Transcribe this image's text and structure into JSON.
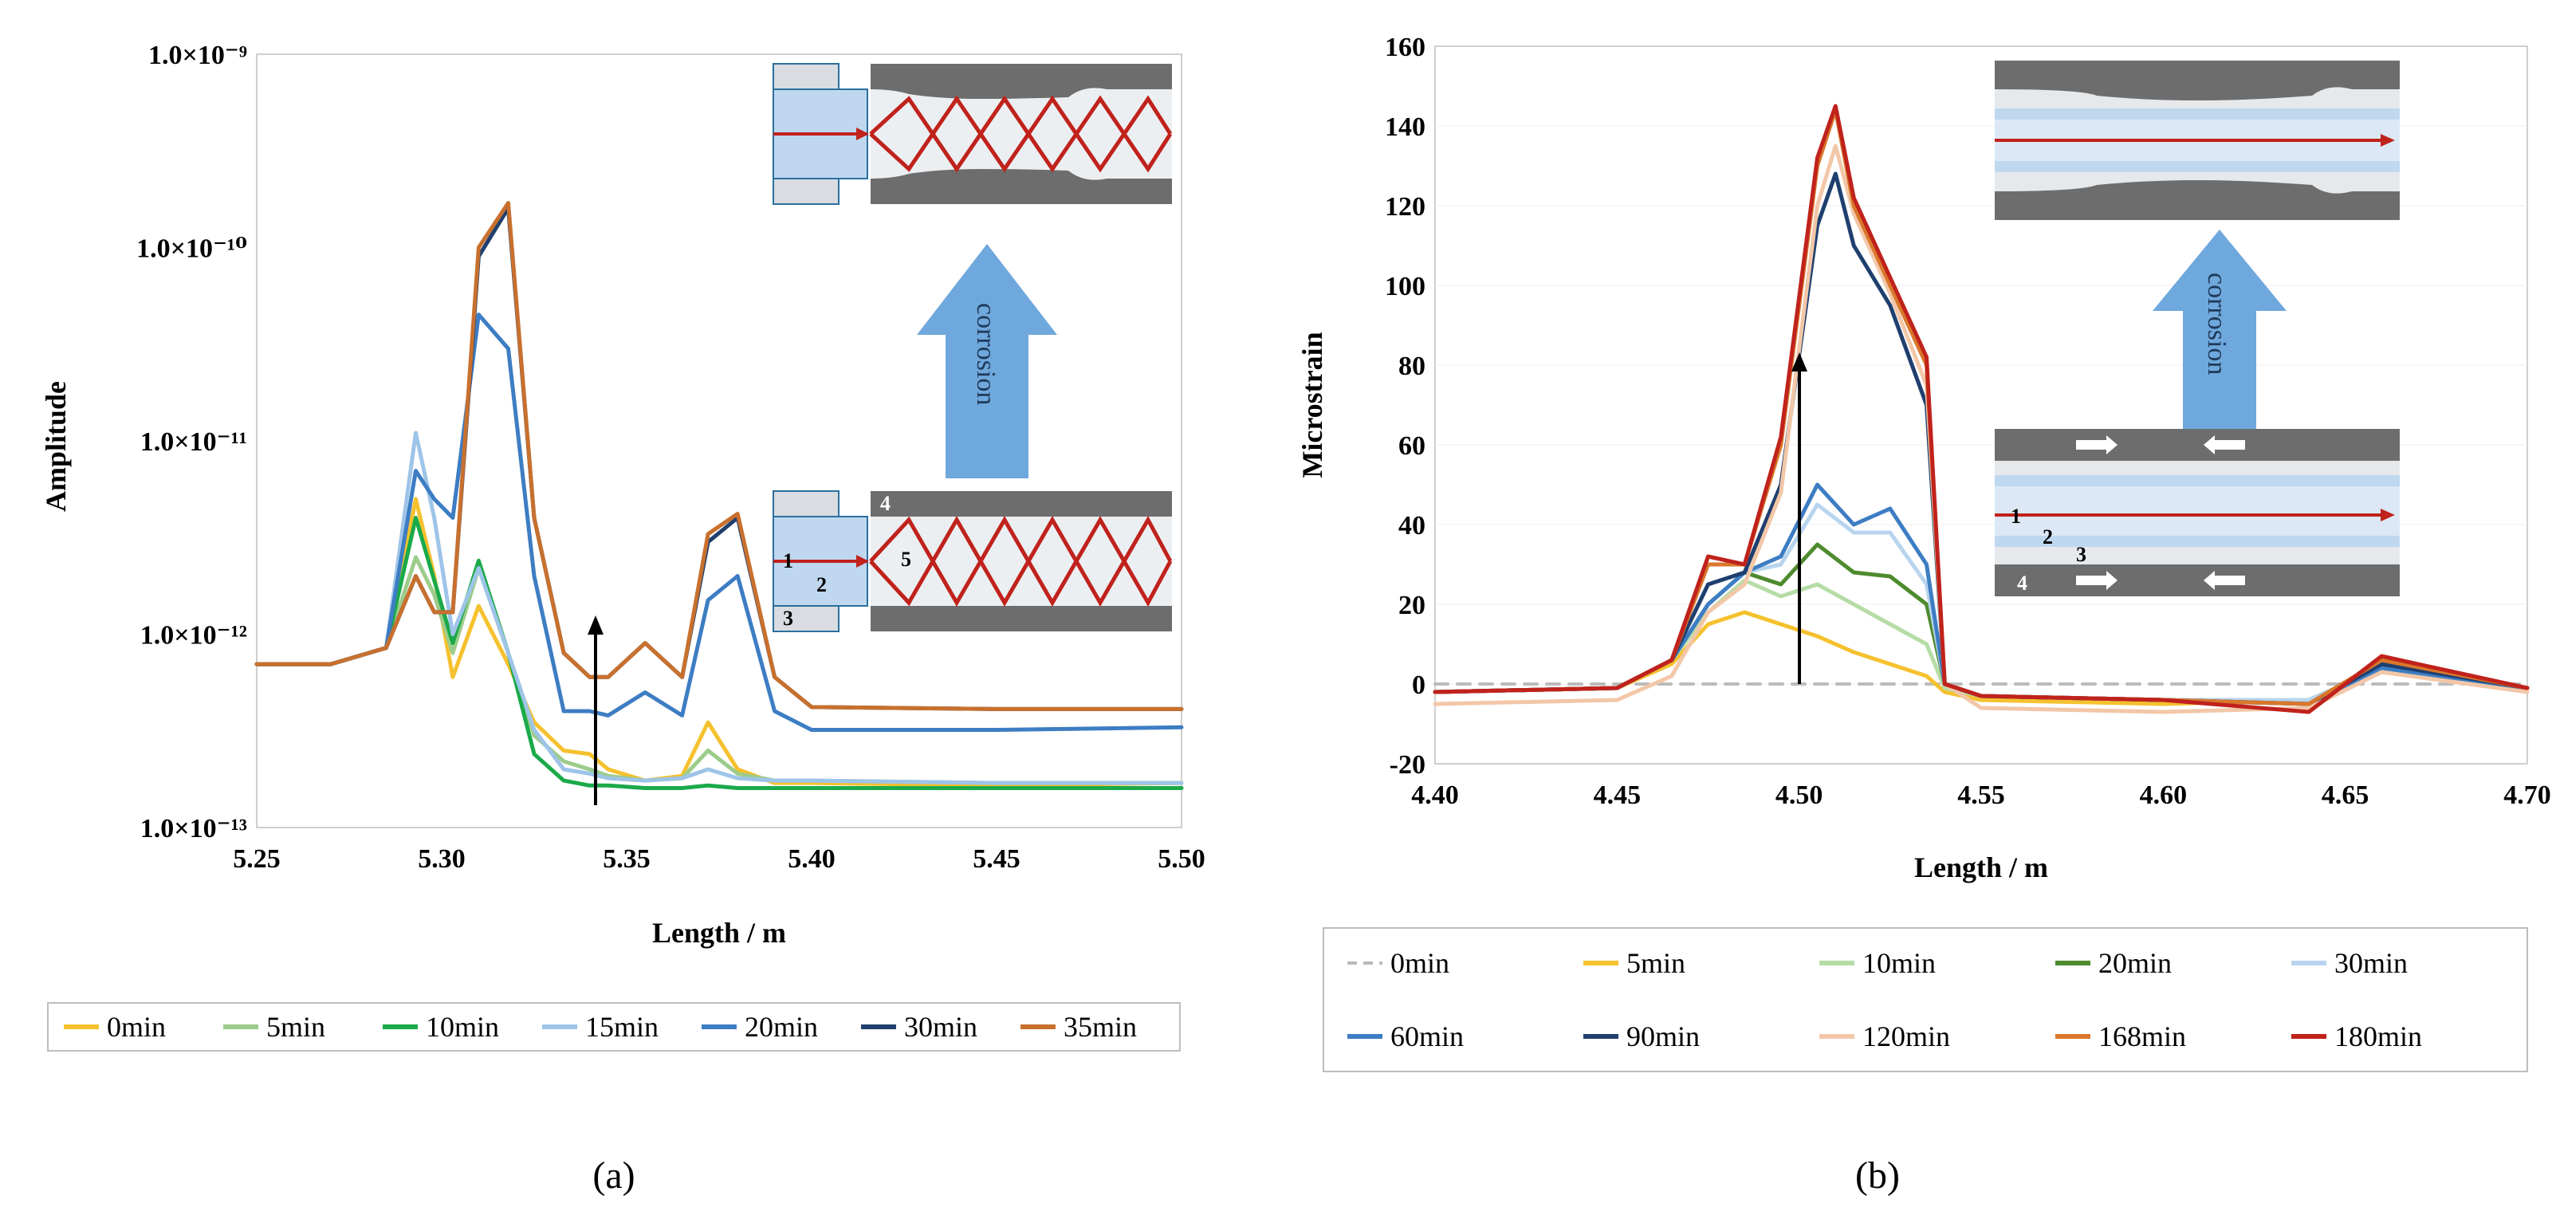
{
  "chart_data": [
    {
      "id": "a",
      "type": "line",
      "caption": "(a)",
      "xlabel": "Length / m",
      "ylabel": "Amplitude",
      "xlim": [
        5.25,
        5.5
      ],
      "ylim": [
        1e-13,
        1e-09
      ],
      "yscale": "log",
      "x_ticks": [
        "5.25",
        "5.30",
        "5.35",
        "5.40",
        "5.45",
        "5.50"
      ],
      "y_ticks": [
        "1.0×10⁻¹³",
        "1.0×10⁻¹²",
        "1.0×10⁻¹¹",
        "1.0×10⁻¹⁰",
        "1.0×10⁻⁹"
      ],
      "legend_position": "bottom",
      "inset_labels": {
        "corrosion": "corrosion",
        "numbers": [
          "1",
          "2",
          "3",
          "4",
          "5"
        ]
      },
      "series": [
        {
          "name": "0min",
          "color": "#f5c12e",
          "x": [
            5.25,
            5.27,
            5.285,
            5.293,
            5.298,
            5.303,
            5.31,
            5.318,
            5.325,
            5.333,
            5.34,
            5.345,
            5.355,
            5.365,
            5.372,
            5.38,
            5.39,
            5.4,
            5.45,
            5.5
          ],
          "y": [
            7e-13,
            7e-13,
            8.5e-13,
            5e-12,
            2e-12,
            6e-13,
            1.4e-12,
            7e-13,
            3.5e-13,
            2.5e-13,
            2.4e-13,
            2e-13,
            1.75e-13,
            1.85e-13,
            3.5e-13,
            2e-13,
            1.7e-13,
            1.7e-13,
            1.65e-13,
            1.7e-13
          ]
        },
        {
          "name": "5min",
          "color": "#9ccc8a",
          "x": [
            5.25,
            5.27,
            5.285,
            5.293,
            5.298,
            5.303,
            5.31,
            5.318,
            5.325,
            5.333,
            5.34,
            5.345,
            5.355,
            5.365,
            5.372,
            5.38,
            5.39,
            5.4,
            5.45,
            5.5
          ],
          "y": [
            7e-13,
            7e-13,
            8.5e-13,
            2.5e-12,
            1.6e-12,
            8e-13,
            2.2e-12,
            8e-13,
            3e-13,
            2.2e-13,
            2e-13,
            1.85e-13,
            1.75e-13,
            1.8e-13,
            2.5e-13,
            1.9e-13,
            1.75e-13,
            1.75e-13,
            1.7e-13,
            1.7e-13
          ]
        },
        {
          "name": "10min",
          "color": "#1aaa4a",
          "x": [
            5.25,
            5.27,
            5.285,
            5.293,
            5.298,
            5.303,
            5.31,
            5.318,
            5.325,
            5.333,
            5.34,
            5.345,
            5.355,
            5.365,
            5.372,
            5.38,
            5.39,
            5.4,
            5.45,
            5.5
          ],
          "y": [
            7e-13,
            7e-13,
            8.5e-13,
            4e-12,
            1.9e-12,
            9e-13,
            2.4e-12,
            8e-13,
            2.4e-13,
            1.75e-13,
            1.65e-13,
            1.65e-13,
            1.6e-13,
            1.6e-13,
            1.65e-13,
            1.6e-13,
            1.6e-13,
            1.6e-13,
            1.6e-13,
            1.6e-13
          ]
        },
        {
          "name": "15min",
          "color": "#9ec4e8",
          "x": [
            5.25,
            5.27,
            5.285,
            5.293,
            5.298,
            5.303,
            5.31,
            5.318,
            5.325,
            5.333,
            5.34,
            5.345,
            5.355,
            5.365,
            5.372,
            5.38,
            5.39,
            5.4,
            5.45,
            5.5
          ],
          "y": [
            7e-13,
            7e-13,
            8.5e-13,
            1.1e-11,
            4e-12,
            1e-12,
            2.2e-12,
            8e-13,
            3.2e-13,
            2e-13,
            1.9e-13,
            1.8e-13,
            1.75e-13,
            1.8e-13,
            2e-13,
            1.8e-13,
            1.75e-13,
            1.75e-13,
            1.7e-13,
            1.7e-13
          ]
        },
        {
          "name": "20min",
          "color": "#3d7dc3",
          "x": [
            5.25,
            5.27,
            5.285,
            5.293,
            5.298,
            5.303,
            5.31,
            5.318,
            5.325,
            5.333,
            5.34,
            5.345,
            5.355,
            5.365,
            5.372,
            5.38,
            5.39,
            5.4,
            5.45,
            5.5
          ],
          "y": [
            7e-13,
            7e-13,
            8.5e-13,
            7e-12,
            5e-12,
            4e-12,
            4.5e-11,
            3e-11,
            2e-12,
            4e-13,
            4e-13,
            3.8e-13,
            5e-13,
            3.8e-13,
            1.5e-12,
            2e-12,
            4e-13,
            3.2e-13,
            3.2e-13,
            3.3e-13
          ]
        },
        {
          "name": "30min",
          "color": "#1f3f6e",
          "x": [
            5.25,
            5.27,
            5.285,
            5.293,
            5.298,
            5.303,
            5.31,
            5.318,
            5.325,
            5.333,
            5.34,
            5.345,
            5.355,
            5.365,
            5.372,
            5.38,
            5.39,
            5.4,
            5.45,
            5.5
          ],
          "y": [
            7e-13,
            7e-13,
            8.5e-13,
            2e-12,
            1.3e-12,
            1.3e-12,
            9e-11,
            1.6e-10,
            4e-12,
            8e-13,
            6e-13,
            6e-13,
            9e-13,
            6e-13,
            3e-12,
            4e-12,
            6e-13,
            4.2e-13,
            4.1e-13,
            4.1e-13
          ]
        },
        {
          "name": "35min",
          "color": "#c8702e",
          "x": [
            5.25,
            5.27,
            5.285,
            5.293,
            5.298,
            5.303,
            5.31,
            5.318,
            5.325,
            5.333,
            5.34,
            5.345,
            5.355,
            5.365,
            5.372,
            5.38,
            5.39,
            5.4,
            5.45,
            5.5
          ],
          "y": [
            7e-13,
            7e-13,
            8.5e-13,
            2e-12,
            1.3e-12,
            1.3e-12,
            1e-10,
            1.7e-10,
            4e-12,
            8e-13,
            6e-13,
            6e-13,
            9e-13,
            6e-13,
            3.3e-12,
            4.2e-12,
            6e-13,
            4.2e-13,
            4.1e-13,
            4.1e-13
          ]
        }
      ]
    },
    {
      "id": "b",
      "type": "line",
      "caption": "(b)",
      "xlabel": "Length / m",
      "ylabel": "Microstrain",
      "xlim": [
        4.4,
        4.7
      ],
      "ylim": [
        -20,
        160
      ],
      "x_ticks": [
        "4.40",
        "4.45",
        "4.50",
        "4.55",
        "4.60",
        "4.65",
        "4.70"
      ],
      "y_ticks": [
        "-20",
        "0",
        "20",
        "40",
        "60",
        "80",
        "100",
        "120",
        "140",
        "160"
      ],
      "legend_position": "bottom",
      "inset_labels": {
        "corrosion": "corrosion",
        "numbers": [
          "1",
          "2",
          "3",
          "4"
        ]
      },
      "series": [
        {
          "name": "0min",
          "color": "#bbbbbb",
          "dashed": true,
          "x": [
            4.4,
            4.7
          ],
          "y": [
            0,
            0
          ]
        },
        {
          "name": "5min",
          "color": "#f5c12e",
          "x": [
            4.4,
            4.45,
            4.465,
            4.475,
            4.485,
            4.495,
            4.505,
            4.515,
            4.525,
            4.535,
            4.54,
            4.55,
            4.6,
            4.64,
            4.66,
            4.7
          ],
          "y": [
            -2,
            -1,
            5,
            15,
            18,
            15,
            12,
            8,
            5,
            2,
            -2,
            -4,
            -5,
            -4,
            3,
            -1
          ]
        },
        {
          "name": "10min",
          "color": "#b6dca6",
          "x": [
            4.4,
            4.45,
            4.465,
            4.475,
            4.485,
            4.495,
            4.505,
            4.515,
            4.525,
            4.535,
            4.54,
            4.55,
            4.6,
            4.64,
            4.66,
            4.7
          ],
          "y": [
            -2,
            -1,
            6,
            18,
            26,
            22,
            25,
            20,
            15,
            10,
            -1,
            -3,
            -4,
            -4,
            4,
            -1
          ]
        },
        {
          "name": "20min",
          "color": "#4e8b2e",
          "x": [
            4.4,
            4.45,
            4.465,
            4.475,
            4.485,
            4.495,
            4.505,
            4.515,
            4.525,
            4.535,
            4.54,
            4.55,
            4.6,
            4.64,
            4.66,
            4.7
          ],
          "y": [
            -2,
            -1,
            6,
            20,
            28,
            25,
            35,
            28,
            27,
            20,
            0,
            -3,
            -4,
            -4,
            4,
            -1
          ]
        },
        {
          "name": "30min",
          "color": "#b8d4ee",
          "x": [
            4.4,
            4.45,
            4.465,
            4.475,
            4.485,
            4.495,
            4.505,
            4.515,
            4.525,
            4.535,
            4.54,
            4.55,
            4.6,
            4.64,
            4.66,
            4.7
          ],
          "y": [
            -2,
            -1,
            6,
            20,
            28,
            30,
            45,
            38,
            38,
            25,
            0,
            -3,
            -4,
            -4,
            4,
            -1
          ]
        },
        {
          "name": "60min",
          "color": "#3d7dc3",
          "x": [
            4.4,
            4.45,
            4.465,
            4.475,
            4.485,
            4.495,
            4.505,
            4.515,
            4.525,
            4.535,
            4.54,
            4.55,
            4.6,
            4.64,
            4.66,
            4.7
          ],
          "y": [
            -2,
            -1,
            6,
            20,
            28,
            32,
            50,
            40,
            44,
            30,
            0,
            -3,
            -4,
            -5,
            4,
            -1
          ]
        },
        {
          "name": "90min",
          "color": "#1f3f6e",
          "x": [
            4.4,
            4.45,
            4.465,
            4.475,
            4.485,
            4.495,
            4.505,
            4.51,
            4.515,
            4.525,
            4.535,
            4.54,
            4.55,
            4.6,
            4.64,
            4.66,
            4.7
          ],
          "y": [
            -2,
            -1,
            6,
            25,
            28,
            50,
            115,
            128,
            110,
            95,
            70,
            0,
            -3,
            -4,
            -5,
            5,
            -1
          ]
        },
        {
          "name": "120min",
          "color": "#f2c7a8",
          "x": [
            4.4,
            4.45,
            4.465,
            4.475,
            4.485,
            4.495,
            4.505,
            4.51,
            4.515,
            4.525,
            4.535,
            4.54,
            4.55,
            4.6,
            4.64,
            4.66,
            4.7
          ],
          "y": [
            -5,
            -4,
            2,
            18,
            25,
            48,
            120,
            135,
            118,
            98,
            75,
            0,
            -6,
            -7,
            -6,
            3,
            -2
          ]
        },
        {
          "name": "168min",
          "color": "#d9772b",
          "x": [
            4.4,
            4.45,
            4.465,
            4.475,
            4.485,
            4.495,
            4.505,
            4.51,
            4.515,
            4.525,
            4.535,
            4.54,
            4.55,
            4.6,
            4.64,
            4.66,
            4.7
          ],
          "y": [
            -2,
            -1,
            6,
            30,
            30,
            60,
            130,
            144,
            120,
            100,
            80,
            0,
            -3,
            -4,
            -5,
            6,
            -1
          ]
        },
        {
          "name": "180min",
          "color": "#c0221c",
          "x": [
            4.4,
            4.45,
            4.465,
            4.475,
            4.485,
            4.495,
            4.505,
            4.51,
            4.515,
            4.525,
            4.535,
            4.54,
            4.55,
            4.6,
            4.64,
            4.66,
            4.7
          ],
          "y": [
            -2,
            -1,
            6,
            32,
            30,
            62,
            132,
            145,
            122,
            102,
            82,
            0,
            -3,
            -4,
            -7,
            7,
            -1
          ]
        }
      ]
    }
  ]
}
